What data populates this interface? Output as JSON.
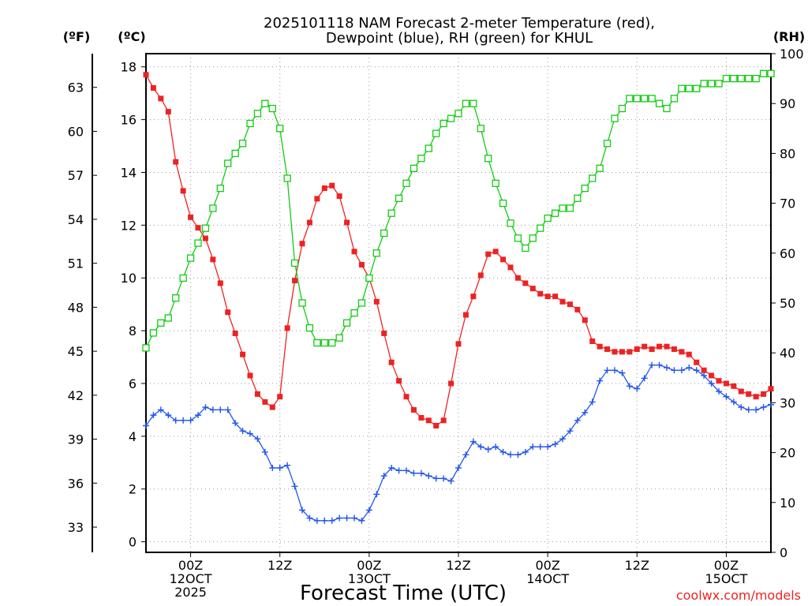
{
  "chart_data": {
    "type": "line",
    "title_line1": "2025101118 NAM Forecast 2-meter Temperature (red),",
    "title_line2": "Dewpoint (blue), RH (green) for KHUL",
    "xlabel": "Forecast Time (UTC)",
    "unit_f": "(ºF)",
    "unit_c": "(ºC)",
    "unit_rh": "(RH)",
    "credit": "coolwx.com/models",
    "x_range_hours": [
      -6,
      78
    ],
    "x_ticks": [
      {
        "hour": 0,
        "lines": [
          "00Z",
          "12OCT",
          "2025"
        ]
      },
      {
        "hour": 12,
        "lines": [
          "12Z"
        ]
      },
      {
        "hour": 24,
        "lines": [
          "00Z",
          "13OCT"
        ]
      },
      {
        "hour": 36,
        "lines": [
          "12Z"
        ]
      },
      {
        "hour": 48,
        "lines": [
          "00Z",
          "14OCT"
        ]
      },
      {
        "hour": 60,
        "lines": [
          "12Z"
        ]
      },
      {
        "hour": 72,
        "lines": [
          "00Z",
          "15OCT"
        ]
      }
    ],
    "c_axis": {
      "range": [
        -0.4,
        18.5
      ],
      "ticks": [
        0,
        2,
        4,
        6,
        8,
        10,
        12,
        14,
        16,
        18
      ]
    },
    "f_axis": {
      "ticks": [
        33,
        36,
        39,
        42,
        45,
        48,
        51,
        54,
        57,
        60,
        63
      ]
    },
    "rh_axis": {
      "range": [
        0,
        100
      ],
      "ticks": [
        0,
        10,
        20,
        30,
        40,
        50,
        60,
        70,
        80,
        90,
        100
      ]
    },
    "series": [
      {
        "name": "Temperature",
        "color": "#ee2222",
        "marker": "filled-square",
        "axis": "celsius",
        "hours": [
          -6,
          -5,
          -4,
          -3,
          -2,
          -1,
          0,
          1,
          2,
          3,
          4,
          5,
          6,
          7,
          8,
          9,
          10,
          11,
          12,
          13,
          14,
          15,
          16,
          17,
          18,
          19,
          20,
          21,
          22,
          23,
          24,
          25,
          26,
          27,
          28,
          29,
          30,
          31,
          32,
          33,
          34,
          35,
          36,
          37,
          38,
          39,
          40,
          41,
          42,
          43,
          44,
          45,
          46,
          47,
          48,
          49,
          50,
          51,
          52,
          53,
          54,
          55,
          56,
          57,
          58,
          59,
          60,
          61,
          62,
          63,
          64,
          65,
          66,
          67,
          68,
          69,
          70,
          71,
          72,
          73,
          74,
          75,
          76,
          77,
          78
        ],
        "values": [
          17.7,
          17.2,
          16.8,
          16.3,
          14.4,
          13.3,
          12.3,
          11.9,
          11.5,
          10.7,
          9.8,
          8.7,
          7.9,
          7.1,
          6.3,
          5.6,
          5.3,
          5.1,
          5.5,
          8.1,
          9.9,
          11.3,
          12.1,
          13.0,
          13.4,
          13.5,
          13.1,
          12.1,
          11.0,
          10.5,
          10.0,
          9.1,
          7.9,
          6.8,
          6.1,
          5.5,
          5.0,
          4.7,
          4.6,
          4.4,
          4.6,
          6.0,
          7.5,
          8.6,
          9.3,
          10.1,
          10.9,
          11.0,
          10.7,
          10.4,
          10.0,
          9.8,
          9.6,
          9.4,
          9.3,
          9.3,
          9.1,
          9.0,
          8.8,
          8.4,
          7.6,
          7.4,
          7.3,
          7.2,
          7.2,
          7.2,
          7.3,
          7.4,
          7.3,
          7.4,
          7.4,
          7.3,
          7.2,
          7.1,
          6.8,
          6.5,
          6.3,
          6.1,
          6.0,
          5.9,
          5.7,
          5.6,
          5.5,
          5.6,
          5.8
        ]
      },
      {
        "name": "Dewpoint",
        "color": "#2255ee",
        "marker": "plus",
        "axis": "celsius",
        "hours": [
          -6,
          -5,
          -4,
          -3,
          -2,
          -1,
          0,
          1,
          2,
          3,
          4,
          5,
          6,
          7,
          8,
          9,
          10,
          11,
          12,
          13,
          14,
          15,
          16,
          17,
          18,
          19,
          20,
          21,
          22,
          23,
          24,
          25,
          26,
          27,
          28,
          29,
          30,
          31,
          32,
          33,
          34,
          35,
          36,
          37,
          38,
          39,
          40,
          41,
          42,
          43,
          44,
          45,
          46,
          47,
          48,
          49,
          50,
          51,
          52,
          53,
          54,
          55,
          56,
          57,
          58,
          59,
          60,
          61,
          62,
          63,
          64,
          65,
          66,
          67,
          68,
          69,
          70,
          71,
          72,
          73,
          74,
          75,
          76,
          77,
          78
        ],
        "values": [
          4.4,
          4.8,
          5.0,
          4.8,
          4.6,
          4.6,
          4.6,
          4.8,
          5.1,
          5.0,
          5.0,
          5.0,
          4.5,
          4.2,
          4.1,
          3.9,
          3.4,
          2.8,
          2.8,
          2.9,
          2.1,
          1.2,
          0.9,
          0.8,
          0.8,
          0.8,
          0.9,
          0.9,
          0.9,
          0.8,
          1.2,
          1.8,
          2.5,
          2.8,
          2.7,
          2.7,
          2.6,
          2.6,
          2.5,
          2.4,
          2.4,
          2.3,
          2.8,
          3.3,
          3.8,
          3.6,
          3.5,
          3.6,
          3.4,
          3.3,
          3.3,
          3.4,
          3.6,
          3.6,
          3.6,
          3.7,
          3.9,
          4.2,
          4.6,
          4.9,
          5.3,
          6.1,
          6.5,
          6.5,
          6.4,
          5.9,
          5.8,
          6.2,
          6.7,
          6.7,
          6.6,
          6.5,
          6.5,
          6.6,
          6.5,
          6.3,
          6.0,
          5.7,
          5.5,
          5.3,
          5.1,
          5.0,
          5.0,
          5.1,
          5.2
        ]
      },
      {
        "name": "Relative Humidity",
        "color": "#11cc11",
        "marker": "open-square",
        "axis": "rh",
        "hours": [
          -6,
          -5,
          -4,
          -3,
          -2,
          -1,
          0,
          1,
          2,
          3,
          4,
          5,
          6,
          7,
          8,
          9,
          10,
          11,
          12,
          13,
          14,
          15,
          16,
          17,
          18,
          19,
          20,
          21,
          22,
          23,
          24,
          25,
          26,
          27,
          28,
          29,
          30,
          31,
          32,
          33,
          34,
          35,
          36,
          37,
          38,
          39,
          40,
          41,
          42,
          43,
          44,
          45,
          46,
          47,
          48,
          49,
          50,
          51,
          52,
          53,
          54,
          55,
          56,
          57,
          58,
          59,
          60,
          61,
          62,
          63,
          64,
          65,
          66,
          67,
          68,
          69,
          70,
          71,
          72,
          73,
          74,
          75,
          76,
          77,
          78
        ],
        "values": [
          41,
          44,
          46,
          47,
          51,
          55,
          59,
          62,
          65,
          69,
          73,
          78,
          80,
          82,
          86,
          88,
          90,
          89,
          85,
          75,
          58,
          50,
          45,
          42,
          42,
          42,
          43,
          46,
          48,
          50,
          55,
          60,
          64,
          68,
          71,
          74,
          77,
          79,
          81,
          84,
          86,
          87,
          88,
          90,
          90,
          85,
          79,
          74,
          70,
          66,
          63,
          61,
          63,
          65,
          67,
          68,
          69,
          69,
          71,
          73,
          75,
          77,
          82,
          87,
          89,
          91,
          91,
          91,
          91,
          90,
          89,
          91,
          93,
          93,
          93,
          94,
          94,
          94,
          95,
          95,
          95,
          95,
          95,
          96,
          96
        ]
      }
    ]
  }
}
